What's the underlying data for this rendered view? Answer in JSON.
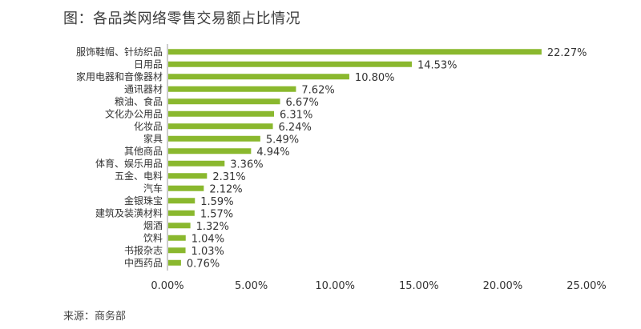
{
  "title": "图：各品类网络零售交易额占比情况",
  "source": "来源：商务部",
  "colors": {
    "bar": "#8ab82e",
    "axis": "#9a9a9a"
  },
  "chart_data": {
    "type": "bar",
    "orientation": "horizontal",
    "categories": [
      "服饰鞋帽、针纺织品",
      "日用品",
      "家用电器和音像器材",
      "通讯器材",
      "粮油、食品",
      "文化办公用品",
      "化妆品",
      "家具",
      "其他商品",
      "体育、娱乐用品",
      "五金、电料",
      "汽车",
      "金银珠宝",
      "建筑及装潢材料",
      "烟酒",
      "饮料",
      "书报杂志",
      "中西药品"
    ],
    "values": [
      22.27,
      14.53,
      10.8,
      7.62,
      6.67,
      6.31,
      6.24,
      5.49,
      4.94,
      3.36,
      2.31,
      2.12,
      1.59,
      1.57,
      1.32,
      1.04,
      1.03,
      0.76
    ],
    "value_labels": [
      "22.27%",
      "14.53%",
      "10.80%",
      "7.62%",
      "6.67%",
      "6.31%",
      "6.24%",
      "5.49%",
      "4.94%",
      "3.36%",
      "2.31%",
      "2.12%",
      "1.59%",
      "1.57%",
      "1.32%",
      "1.04%",
      "1.03%",
      "0.76%"
    ],
    "xlim": [
      0,
      25
    ],
    "xticks": [
      0,
      5,
      10,
      15,
      20,
      25
    ],
    "xtick_labels": [
      "0.00%",
      "5.00%",
      "10.00%",
      "15.00%",
      "20.00%",
      "25.00%"
    ],
    "title": "图：各品类网络零售交易额占比情况",
    "xlabel": "",
    "ylabel": "",
    "grid": false,
    "legend": "none"
  }
}
